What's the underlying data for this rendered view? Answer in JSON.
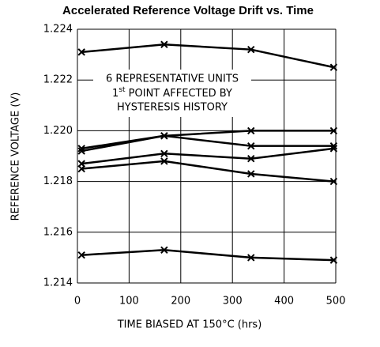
{
  "chart_data": {
    "type": "line",
    "title": "Accelerated Reference Voltage Drift vs. Time",
    "xlabel": "TIME BIASED AT 150°C (hrs)",
    "ylabel": "REFERENCE VOLTAGE (V)",
    "annotation": {
      "line1": "6 REPRESENTATIVE UNITS",
      "line2_base": "1",
      "line2_sup": "st",
      "line2_rest": " POINT AFFECTED BY",
      "line3": "HYSTERESIS HISTORY"
    },
    "x": [
      8,
      168,
      336,
      496
    ],
    "series": [
      {
        "color": "#000000",
        "values": [
          1.2231,
          1.2234,
          1.2232,
          1.2225
        ]
      },
      {
        "color": "#000000",
        "values": [
          1.2192,
          1.2198,
          1.22,
          1.22
        ]
      },
      {
        "color": "#000000",
        "values": [
          1.2193,
          1.2198,
          1.2194,
          1.2194
        ]
      },
      {
        "color": "#000000",
        "values": [
          1.2187,
          1.2191,
          1.2189,
          1.2193
        ]
      },
      {
        "color": "#000000",
        "values": [
          1.2185,
          1.2188,
          1.2183,
          1.218
        ]
      },
      {
        "color": "#000000",
        "values": [
          1.2151,
          1.2153,
          1.215,
          1.2149
        ]
      }
    ],
    "xlim": [
      0,
      500
    ],
    "xticks": [
      0,
      100,
      200,
      300,
      400,
      500
    ],
    "ylim": [
      1.214,
      1.224
    ],
    "yticks": [
      1.214,
      1.216,
      1.218,
      {
        "value": 1.22,
        "label": "1.220"
      },
      1.222,
      1.224
    ],
    "grid": true,
    "marker": "x"
  }
}
